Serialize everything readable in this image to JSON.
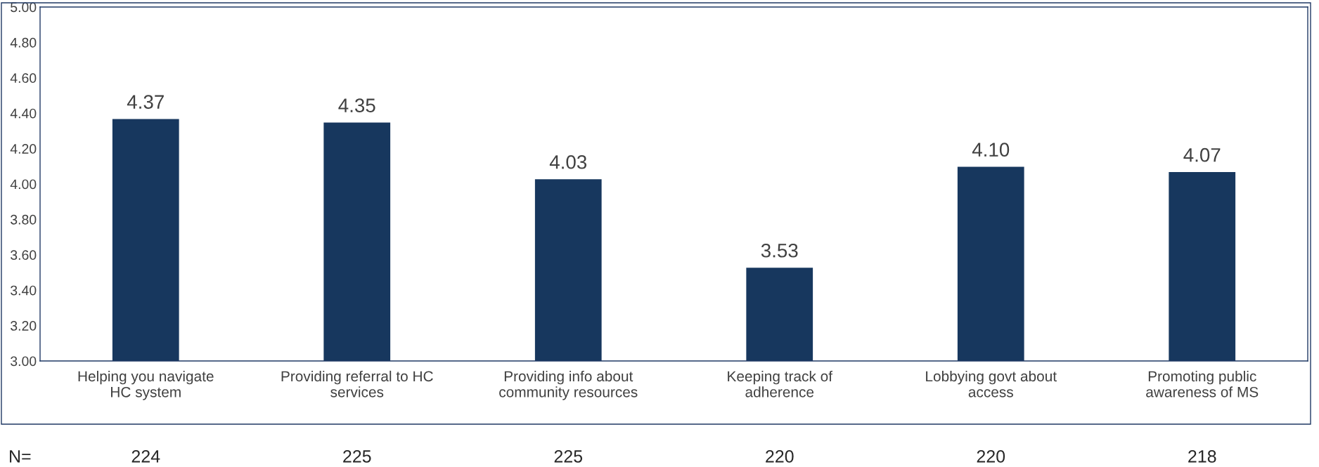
{
  "chart_data": {
    "type": "bar",
    "categories": [
      "Helping you navigate\nHC system",
      "Providing referral to HC\nservices",
      "Providing info about\ncommunity resources",
      "Keeping track of\nadherence",
      "Lobbying govt about\naccess",
      "Promoting public\nawareness of MS"
    ],
    "values": [
      4.37,
      4.35,
      4.03,
      3.53,
      4.1,
      4.07
    ],
    "value_labels": [
      "4.37",
      "4.35",
      "4.03",
      "3.53",
      "4.10",
      "4.07"
    ],
    "color": "#17375e",
    "ylim": [
      3,
      5
    ],
    "yticks": [
      {
        "value": 3,
        "label": "3.00"
      },
      {
        "value": 3.2,
        "label": "3.20"
      },
      {
        "value": 3.4,
        "label": "3.40"
      },
      {
        "value": 3.6,
        "label": "3.60"
      },
      {
        "value": 3.8,
        "label": "3.80"
      },
      {
        "value": 4,
        "label": "4.00"
      },
      {
        "value": 4.2,
        "label": "4.20"
      },
      {
        "value": 4.4,
        "label": "4.40"
      },
      {
        "value": 4.6,
        "label": "4.60"
      },
      {
        "value": 4.8,
        "label": "4.80"
      },
      {
        "value": 5,
        "label": "5.00"
      }
    ],
    "annotations": [
      "N=",
      "224",
      "225",
      "225",
      "220",
      "220",
      "218"
    ]
  }
}
